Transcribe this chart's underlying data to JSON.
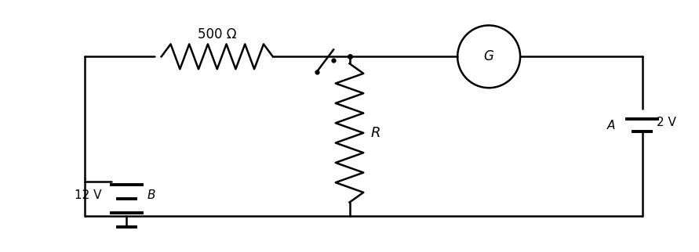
{
  "fig_width": 8.91,
  "fig_height": 3.22,
  "dpi": 100,
  "bg_color": "#ffffff",
  "line_color": "#000000",
  "line_width": 1.8,
  "label_500": "500 Ω",
  "label_R": "R",
  "label_G": "G",
  "label_A": "A",
  "label_12V": "12 V",
  "label_2V": "2 V",
  "label_B": "B"
}
